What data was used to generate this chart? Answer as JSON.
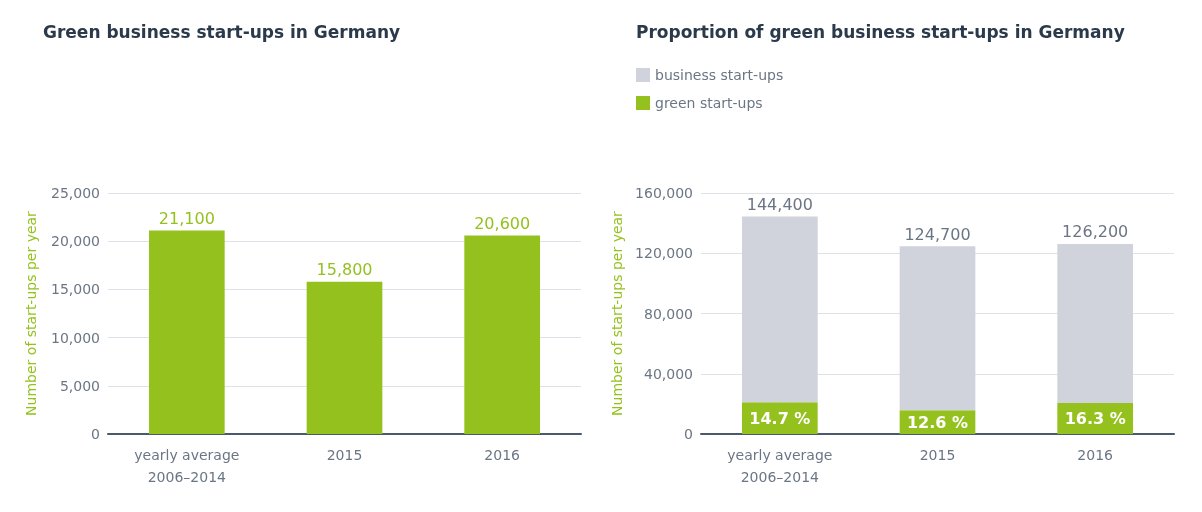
{
  "chart_data": [
    {
      "type": "bar",
      "title": "Green business start-ups in Germany",
      "ylabel": "Number of start-ups per year",
      "categories": [
        "yearly average\n2006–2014",
        "2015",
        "2016"
      ],
      "series": [
        {
          "color": "#95c11f",
          "values": [
            21100,
            15800,
            20600
          ],
          "value_labels": [
            "21,100",
            "15,800",
            "20,600"
          ]
        }
      ],
      "ylim": [
        0,
        25000
      ],
      "yticks": [
        {
          "value": 0,
          "label": "0"
        },
        {
          "value": 5000,
          "label": "5,000"
        },
        {
          "value": 10000,
          "label": "10,000"
        },
        {
          "value": 15000,
          "label": "15,000"
        },
        {
          "value": 20000,
          "label": "20,000"
        },
        {
          "value": 25000,
          "label": "25,000"
        }
      ],
      "grid": "y",
      "legend": false
    },
    {
      "type": "bar",
      "title": "Proportion of green business start-ups in Germany",
      "ylabel": "Number of start-ups per year",
      "categories": [
        "yearly average\n2006–2014",
        "2015",
        "2016"
      ],
      "stacked": true,
      "series": [
        {
          "name": "green start-ups",
          "color": "#95c11f",
          "values": [
            21100,
            15800,
            20600
          ]
        },
        {
          "name": "business start-ups",
          "color": "#d1d3dc",
          "values": [
            123300,
            108900,
            105600
          ]
        }
      ],
      "totals": [
        "144,400",
        "124,700",
        "126,200"
      ],
      "annotations": [
        "14.7 %",
        "12.6 %",
        "16.3 %"
      ],
      "ylim": [
        0,
        160000
      ],
      "yticks": [
        {
          "value": 0,
          "label": "0"
        },
        {
          "value": 40000,
          "label": "40,000"
        },
        {
          "value": 80000,
          "label": "80,000"
        },
        {
          "value": 120000,
          "label": "120,000"
        },
        {
          "value": 160000,
          "label": "160,000"
        }
      ],
      "grid": "y",
      "legend": "top left"
    }
  ]
}
